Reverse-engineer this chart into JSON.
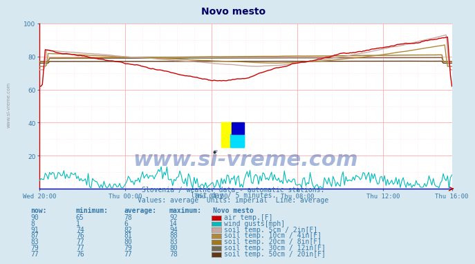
{
  "title": "Novo mesto",
  "bg_color": "#d8e8f0",
  "plot_bg_color": "#ffffff",
  "grid_color_major": "#ffaaaa",
  "grid_color_minor": "#ffdddd",
  "x_labels": [
    "Wed 20:00",
    "Thu 00:00",
    "Thu 04:00",
    "Thu 08:00",
    "Thu 12:00",
    "Thu 16:00"
  ],
  "x_ticks": [
    0,
    60,
    120,
    180,
    240,
    288
  ],
  "ylim": [
    0,
    100
  ],
  "yticks": [
    20,
    40,
    60,
    80,
    100
  ],
  "n_points": 289,
  "series": {
    "air_temp": {
      "color": "#cc0000",
      "now": 90,
      "min": 65,
      "avg": 78,
      "max": 92,
      "label": "air temp.[F]"
    },
    "wind_gusts": {
      "color": "#00bbbb",
      "now": 8,
      "min": 1,
      "avg": 6,
      "max": 14,
      "label": "wind gusts[mph]"
    },
    "soil_5cm": {
      "color": "#c8a8a0",
      "now": 91,
      "min": 74,
      "avg": 82,
      "max": 94,
      "label": "soil temp. 5cm / 2in[F]"
    },
    "soil_10cm": {
      "color": "#b08838",
      "now": 87,
      "min": 76,
      "avg": 81,
      "max": 88,
      "label": "soil temp. 10cm / 4in[F]"
    },
    "soil_20cm": {
      "color": "#a07820",
      "now": 83,
      "min": 77,
      "avg": 80,
      "max": 83,
      "label": "soil temp. 20cm / 8in[F]"
    },
    "soil_30cm": {
      "color": "#706850",
      "now": 79,
      "min": 77,
      "avg": 79,
      "max": 80,
      "label": "soil temp. 30cm / 12in[F]"
    },
    "soil_50cm": {
      "color": "#603818",
      "now": 77,
      "min": 76,
      "avg": 77,
      "max": 78,
      "label": "soil temp. 50cm / 20in[F]"
    }
  },
  "subtitle1": "Slovenia / weather data - automatic stations.",
  "subtitle2": "last day / 5 minutes.",
  "subtitle3": "Values: average  Units: imperial  Line: average",
  "table_headers": [
    "now:",
    "minimum:",
    "average:",
    "maximum:",
    "Novo mesto"
  ],
  "watermark": "www.si-vreme.com",
  "left_label": "www.si-vreme.com"
}
